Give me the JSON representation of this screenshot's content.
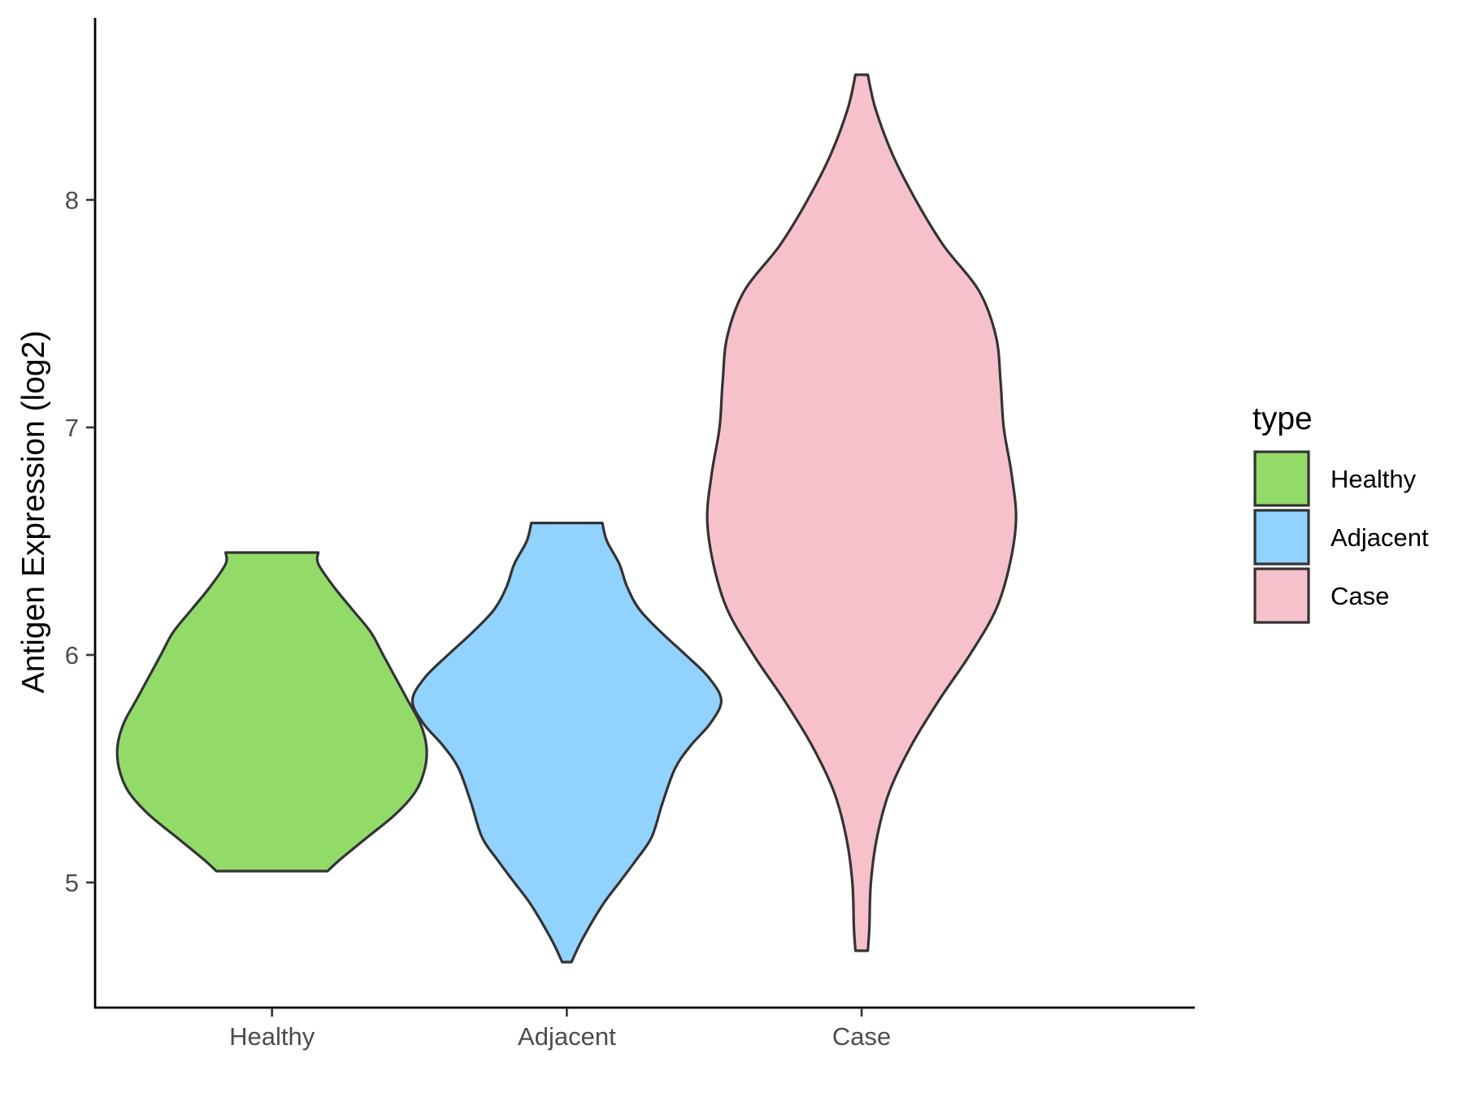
{
  "chart_data": {
    "type": "violin",
    "xlabel": "",
    "ylabel": "Antigen Expression (log2)",
    "ylim": [
      4.45,
      8.8
    ],
    "yticks": [
      5,
      6,
      7,
      8
    ],
    "categories": [
      "Healthy",
      "Adjacent",
      "Case"
    ],
    "legend": {
      "title": "type",
      "position": "right",
      "entries": [
        "Healthy",
        "Adjacent",
        "Case"
      ]
    },
    "grid": false,
    "series": [
      {
        "name": "Healthy",
        "color": "#93DB69",
        "range": [
          5.05,
          6.45
        ],
        "density": [
          [
            5.05,
            0.36
          ],
          [
            5.1,
            0.44
          ],
          [
            5.2,
            0.62
          ],
          [
            5.3,
            0.8
          ],
          [
            5.4,
            0.93
          ],
          [
            5.5,
            0.99
          ],
          [
            5.6,
            1.0
          ],
          [
            5.7,
            0.96
          ],
          [
            5.8,
            0.88
          ],
          [
            5.9,
            0.8
          ],
          [
            6.0,
            0.72
          ],
          [
            6.1,
            0.64
          ],
          [
            6.2,
            0.52
          ],
          [
            6.3,
            0.4
          ],
          [
            6.4,
            0.3
          ],
          [
            6.45,
            0.3
          ]
        ]
      },
      {
        "name": "Adjacent",
        "color": "#92D2FF",
        "range": [
          4.65,
          6.58
        ],
        "density": [
          [
            4.65,
            0.03
          ],
          [
            4.75,
            0.1
          ],
          [
            4.9,
            0.23
          ],
          [
            5.0,
            0.34
          ],
          [
            5.1,
            0.45
          ],
          [
            5.2,
            0.55
          ],
          [
            5.35,
            0.62
          ],
          [
            5.5,
            0.7
          ],
          [
            5.6,
            0.8
          ],
          [
            5.7,
            0.93
          ],
          [
            5.8,
            1.0
          ],
          [
            5.9,
            0.92
          ],
          [
            6.0,
            0.77
          ],
          [
            6.1,
            0.61
          ],
          [
            6.2,
            0.47
          ],
          [
            6.3,
            0.39
          ],
          [
            6.4,
            0.34
          ],
          [
            6.5,
            0.26
          ],
          [
            6.58,
            0.23
          ]
        ]
      },
      {
        "name": "Case",
        "color": "#F7C1CC",
        "range": [
          4.7,
          8.55
        ],
        "density": [
          [
            4.7,
            0.04
          ],
          [
            4.8,
            0.05
          ],
          [
            5.0,
            0.06
          ],
          [
            5.2,
            0.1
          ],
          [
            5.4,
            0.18
          ],
          [
            5.6,
            0.32
          ],
          [
            5.8,
            0.5
          ],
          [
            6.0,
            0.7
          ],
          [
            6.2,
            0.87
          ],
          [
            6.4,
            0.96
          ],
          [
            6.6,
            1.0
          ],
          [
            6.8,
            0.97
          ],
          [
            7.0,
            0.92
          ],
          [
            7.2,
            0.9
          ],
          [
            7.4,
            0.87
          ],
          [
            7.6,
            0.76
          ],
          [
            7.8,
            0.53
          ],
          [
            8.0,
            0.35
          ],
          [
            8.2,
            0.2
          ],
          [
            8.4,
            0.09
          ],
          [
            8.55,
            0.04
          ]
        ]
      }
    ]
  }
}
